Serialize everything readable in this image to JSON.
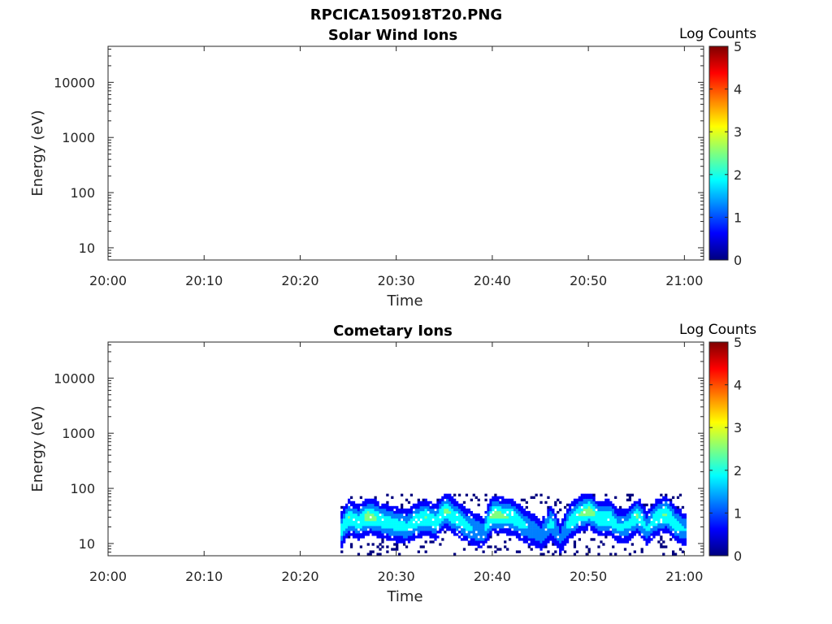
{
  "figure": {
    "title": "RPCICA150918T20.PNG"
  },
  "colormap": [
    "#00007f",
    "#0000ff",
    "#007fff",
    "#00ffff",
    "#7fff7f",
    "#ffff00",
    "#ff7f00",
    "#ff0000",
    "#7f0000"
  ],
  "chart_data": [
    {
      "type": "heatmap",
      "title": "Solar Wind Ions",
      "xlabel": "Time",
      "ylabel": "Energy (eV)",
      "x_ticks": [
        "20:00",
        "20:10",
        "20:20",
        "20:30",
        "20:40",
        "20:50",
        "21:00"
      ],
      "xlim": [
        "20:00",
        "21:02"
      ],
      "y_scale": "log",
      "y_ticks": [
        "10",
        "100",
        "1000",
        "10000"
      ],
      "ylim": [
        6,
        45000
      ],
      "colorbar": {
        "label": "Log Counts",
        "range": [
          0,
          5
        ],
        "ticks": [
          "0",
          "1",
          "2",
          "3",
          "4",
          "5"
        ]
      },
      "data_present": false,
      "series": []
    },
    {
      "type": "heatmap",
      "title": "Cometary Ions",
      "xlabel": "Time",
      "ylabel": "Energy (eV)",
      "x_ticks": [
        "20:00",
        "20:10",
        "20:20",
        "20:30",
        "20:40",
        "20:50",
        "21:00"
      ],
      "xlim": [
        "20:00",
        "21:02"
      ],
      "y_scale": "log",
      "y_ticks": [
        "10",
        "100",
        "1000",
        "10000"
      ],
      "ylim": [
        6,
        45000
      ],
      "colorbar": {
        "label": "Log Counts",
        "range": [
          0,
          5
        ],
        "ticks": [
          "0",
          "1",
          "2",
          "3",
          "4",
          "5"
        ]
      },
      "data_present": true,
      "data_time_range": [
        "20:24",
        "21:00"
      ],
      "peak_energy_profile": {
        "time_min": [
          24.2,
          25,
          26,
          27,
          28,
          29,
          30,
          31,
          32,
          33,
          34,
          35,
          36,
          37,
          38,
          39,
          39.5,
          40,
          41,
          42,
          43,
          44,
          45,
          46,
          47,
          48,
          49,
          50,
          51,
          52,
          53,
          54,
          55,
          56,
          57,
          58,
          59,
          60
        ],
        "energy_ev": [
          18,
          30,
          24,
          32,
          28,
          24,
          22,
          20,
          26,
          30,
          24,
          40,
          30,
          22,
          18,
          16,
          26,
          34,
          32,
          30,
          22,
          18,
          14,
          24,
          12,
          26,
          34,
          40,
          28,
          30,
          20,
          22,
          32,
          18,
          30,
          34,
          22,
          18
        ],
        "peak_log_counts": [
          1.6,
          2.0,
          1.7,
          2.2,
          1.9,
          1.7,
          1.6,
          1.5,
          1.8,
          2.0,
          1.6,
          2.1,
          1.8,
          1.5,
          1.3,
          1.2,
          1.8,
          2.2,
          2.0,
          1.9,
          1.5,
          1.2,
          1.0,
          1.6,
          0.8,
          1.7,
          2.0,
          2.2,
          1.7,
          1.9,
          1.4,
          1.5,
          2.0,
          1.3,
          1.9,
          2.0,
          1.6,
          1.3
        ]
      }
    }
  ]
}
